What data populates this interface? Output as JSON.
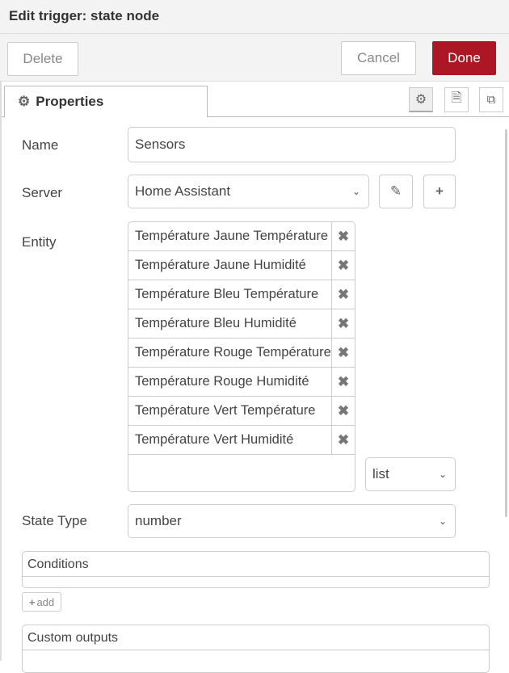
{
  "header": {
    "title": "Edit trigger: state node"
  },
  "buttons": {
    "delete": "Delete",
    "cancel": "Cancel",
    "done": "Done"
  },
  "colors": {
    "done": "#ad1625"
  },
  "tabs": {
    "properties": "Properties",
    "icons": [
      "gear-icon",
      "description-icon",
      "appearance-icon"
    ]
  },
  "form": {
    "name_label": "Name",
    "name_value": "Sensors",
    "server_label": "Server",
    "server_value": "Home Assistant",
    "entity_label": "Entity",
    "entities": [
      "Température Jaune Température",
      "Température Jaune Humidité",
      "Température Bleu Température",
      "Température Bleu Humidité",
      "Température Rouge Température",
      "Température Rouge Humidité",
      "Température Vert Température",
      "Température Vert Humidité"
    ],
    "entity_mode": "list",
    "state_type_label": "State Type",
    "state_type_value": "number"
  },
  "conditions": {
    "title": "Conditions",
    "add": "add"
  },
  "custom_outputs": {
    "title": "Custom outputs"
  }
}
